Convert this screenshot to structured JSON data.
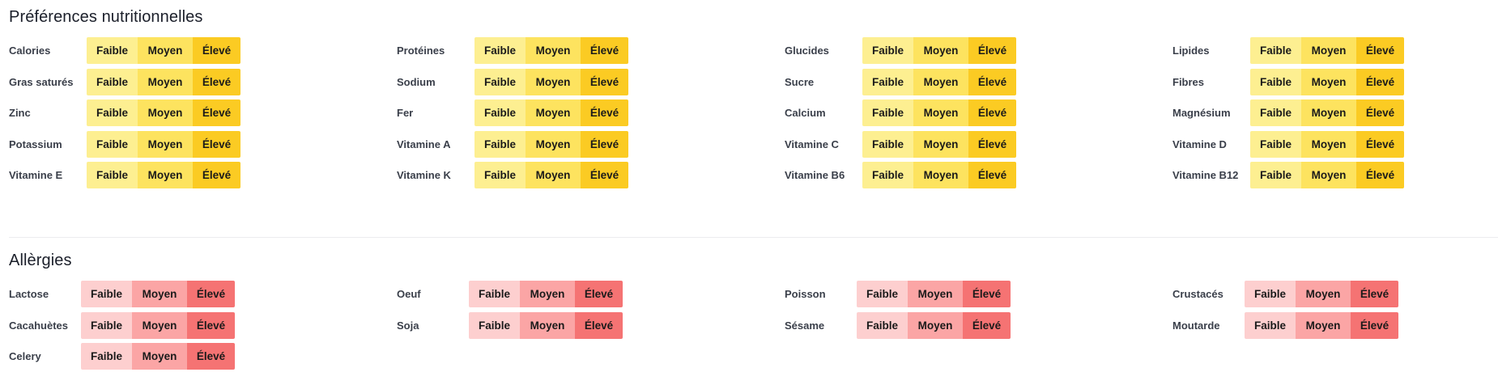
{
  "nutrition": {
    "title": "Préférences nutritionnelles",
    "options": [
      "Faible",
      "Moyen",
      "Élevé"
    ],
    "colors": {
      "low": "#fdef91",
      "mid": "#fde35f",
      "high": "#fbcb23"
    },
    "items": [
      {
        "label": "Calories"
      },
      {
        "label": "Protéines"
      },
      {
        "label": "Glucides"
      },
      {
        "label": "Lipides"
      },
      {
        "label": "Gras saturés"
      },
      {
        "label": "Sodium"
      },
      {
        "label": "Sucre"
      },
      {
        "label": "Fibres"
      },
      {
        "label": "Zinc"
      },
      {
        "label": "Fer"
      },
      {
        "label": "Calcium"
      },
      {
        "label": "Magnésium"
      },
      {
        "label": "Potassium"
      },
      {
        "label": "Vitamine A"
      },
      {
        "label": "Vitamine C"
      },
      {
        "label": "Vitamine D"
      },
      {
        "label": "Vitamine E"
      },
      {
        "label": "Vitamine K"
      },
      {
        "label": "Vitamine B6"
      },
      {
        "label": "Vitamine B12"
      }
    ]
  },
  "allergies": {
    "title": "Allèrgies",
    "options": [
      "Faible",
      "Moyen",
      "Élevé"
    ],
    "colors": {
      "low": "#fdcfcf",
      "mid": "#fba5a5",
      "high": "#f57373"
    },
    "items": [
      {
        "label": "Lactose"
      },
      {
        "label": "Oeuf"
      },
      {
        "label": "Poisson"
      },
      {
        "label": "Crustacés"
      },
      {
        "label": "Cacahuètes"
      },
      {
        "label": "Soja"
      },
      {
        "label": "Sésame"
      },
      {
        "label": "Moutarde"
      },
      {
        "label": "Celery"
      }
    ]
  }
}
